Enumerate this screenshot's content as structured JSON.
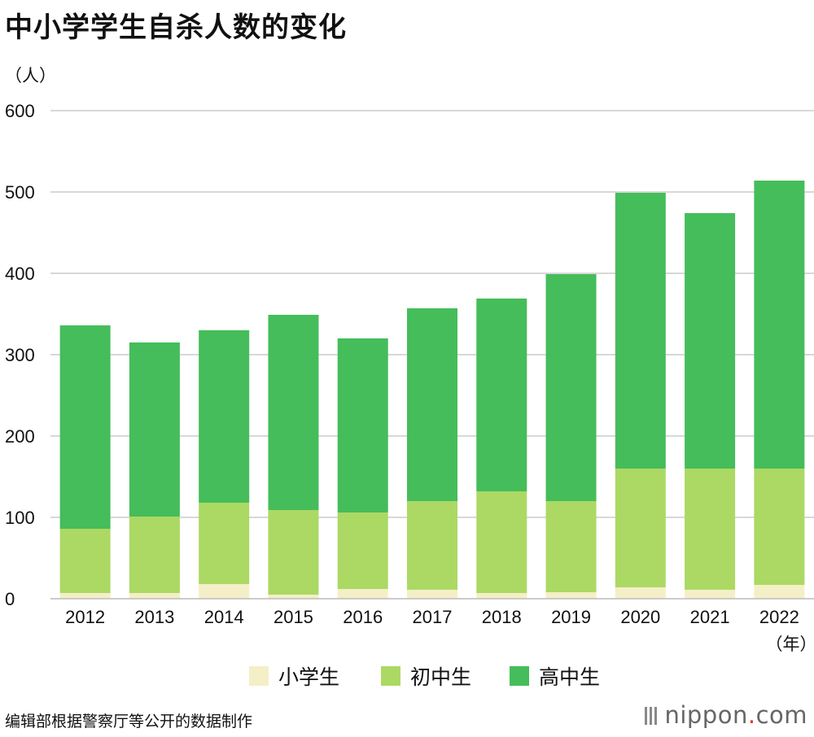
{
  "title": "中小学学生自杀人数的变化",
  "source": "编辑部根据警察厅等公开的数据制作",
  "logo": {
    "name": "nippon",
    "dot": ".",
    "suffix": "com"
  },
  "colors": {
    "elementary": "#f4efc6",
    "junior_high": "#abd964",
    "high_school": "#45bd5a",
    "grid": "#cccccc"
  },
  "chart_data": {
    "type": "bar",
    "stacked": true,
    "title": "中小学学生自杀人数的变化",
    "ylabel": "（人）",
    "xlabel": "（年）",
    "ylim": [
      0,
      600
    ],
    "yticks": [
      0,
      100,
      200,
      300,
      400,
      500,
      600
    ],
    "grid": true,
    "legend": "bottom",
    "categories": [
      "2012",
      "2013",
      "2014",
      "2015",
      "2016",
      "2017",
      "2018",
      "2019",
      "2020",
      "2021",
      "2022"
    ],
    "series": [
      {
        "name": "小学生",
        "color": "#f4efc6",
        "values": [
          7,
          7,
          18,
          5,
          12,
          11,
          7,
          8,
          14,
          11,
          17
        ]
      },
      {
        "name": "初中生",
        "color": "#abd964",
        "values": [
          79,
          94,
          100,
          104,
          94,
          109,
          125,
          112,
          146,
          149,
          143
        ]
      },
      {
        "name": "高中生",
        "color": "#45bd5a",
        "values": [
          250,
          214,
          212,
          240,
          214,
          237,
          237,
          279,
          339,
          314,
          354
        ]
      }
    ]
  }
}
